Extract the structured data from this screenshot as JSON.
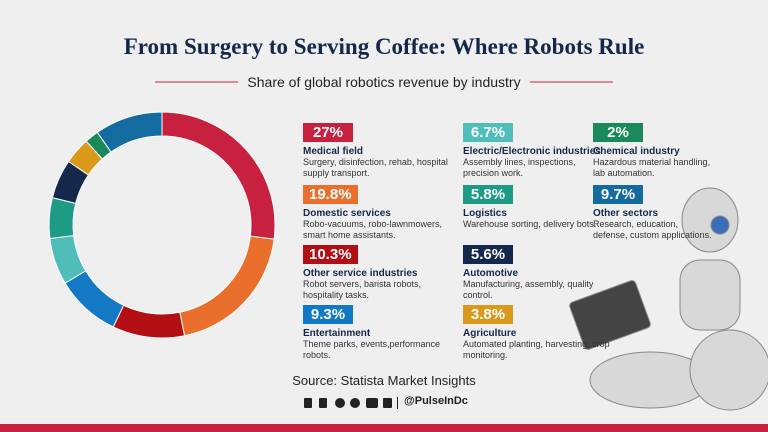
{
  "chart_data": {
    "type": "donut",
    "title": "From Surgery to Serving Coffee: Where Robots Rule",
    "subtitle": "Share of global robotics revenue by industry",
    "categories": [
      "Medical field",
      "Domestic services",
      "Other service industries",
      "Entertainment",
      "Electric/Electronic industries",
      "Logistics",
      "Automotive",
      "Agriculture",
      "Chemical industry",
      "Other sectors"
    ],
    "values": [
      27,
      19.8,
      10.3,
      9.3,
      6.7,
      5.8,
      5.6,
      3.8,
      2,
      9.7
    ],
    "value_labels": [
      "27%",
      "19.8%",
      "10.3%",
      "9.3%",
      "6.7%",
      "5.8%",
      "5.6%",
      "3.8%",
      "2%",
      "9.7%"
    ],
    "descriptions": [
      "Surgery, disinfection, rehab, hospital supply transport.",
      "Robo-vacuums, robo-lawnmowers, smart home assistants.",
      "Robot servers, barista robots, hospitality tasks.",
      "Theme parks, events,performance robots.",
      "Assembly lines, inspections, precision work.",
      "Warehouse sorting, delivery bots.",
      "Manufacturing, assembly, quality control.",
      "Automated planting, harvesting, crop monitoring.",
      "Hazardous material handling, lab automation.",
      "Research, education, defense, custom applications."
    ],
    "colors": [
      "#c8203f",
      "#ea6f2d",
      "#b10f14",
      "#1479c4",
      "#4fbdb9",
      "#1d9b85",
      "#14284b",
      "#d99a1b",
      "#1a8a5a",
      "#136ba0"
    ],
    "source": "Source: Statista Market Insights",
    "handle": "@PulseInDc"
  }
}
